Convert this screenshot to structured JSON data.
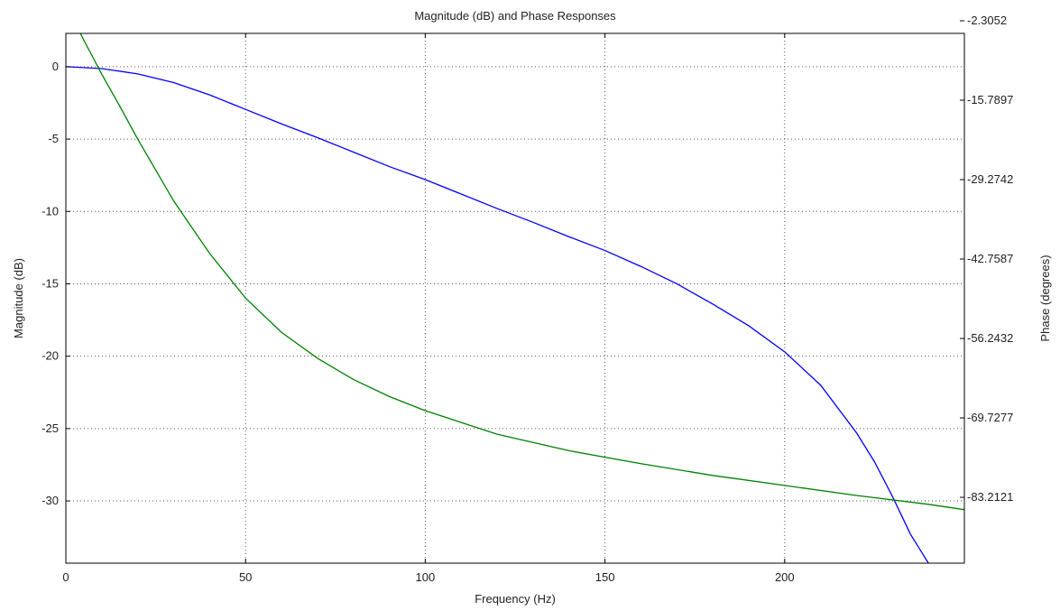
{
  "chart_data": {
    "type": "line",
    "title": "Magnitude (dB) and Phase Responses",
    "xlabel": "Frequency (Hz)",
    "ylabel_left": "Magnitude (dB)",
    "ylabel_right": "Phase (degrees)",
    "xlim": [
      0,
      250
    ],
    "ylim_left": [
      -34.3,
      2.3
    ],
    "ylim_right": [
      -94.39,
      -4.45
    ],
    "x_ticks": [
      0,
      50,
      100,
      150,
      200
    ],
    "x_tick_labels": [
      "0",
      "50",
      "100",
      "150",
      "200"
    ],
    "y_left_ticks": [
      0,
      -5,
      -10,
      -15,
      -20,
      -25,
      -30
    ],
    "y_left_tick_labels": [
      "0",
      "-5",
      "-10",
      "-15",
      "-20",
      "-25",
      "-30"
    ],
    "y_right_ticks": [
      -2.3052,
      -15.7897,
      -29.2742,
      -42.7587,
      -56.2432,
      -69.7277,
      -83.2121
    ],
    "y_right_tick_labels": [
      "-2.3052",
      "-15.7897",
      "-29.2742",
      "-42.7587",
      "-56.2432",
      "-69.7277",
      "-83.2121"
    ],
    "grid": true,
    "series": [
      {
        "axis": "left",
        "color": "#0000ff",
        "x": [
          0,
          10,
          20,
          30,
          40,
          50,
          60,
          70,
          80,
          90,
          100,
          110,
          120,
          130,
          140,
          150,
          160,
          170,
          180,
          190,
          200,
          210,
          220,
          225,
          230,
          235,
          240
        ],
        "y": [
          0,
          -0.13,
          -0.5,
          -1.1,
          -1.95,
          -2.95,
          -3.95,
          -4.9,
          -5.9,
          -6.9,
          -7.8,
          -8.8,
          -9.8,
          -10.75,
          -11.75,
          -12.7,
          -13.8,
          -15.0,
          -16.4,
          -17.9,
          -19.7,
          -22.0,
          -25.3,
          -27.3,
          -29.7,
          -32.3,
          -34.3
        ]
      },
      {
        "axis": "right",
        "color": "#008000",
        "x": [
          0,
          5,
          10,
          15,
          20,
          30,
          40,
          50,
          60,
          70,
          80,
          90,
          100,
          120,
          140,
          160,
          180,
          200,
          220,
          240,
          250
        ],
        "y": [
          0.5,
          -5.6,
          -11.4,
          -16.8,
          -22.4,
          -32.9,
          -41.8,
          -49.4,
          -55.2,
          -59.6,
          -63.2,
          -66.1,
          -68.5,
          -72.5,
          -75.3,
          -77.5,
          -79.5,
          -81.2,
          -82.9,
          -84.4,
          -85.3
        ]
      }
    ]
  }
}
